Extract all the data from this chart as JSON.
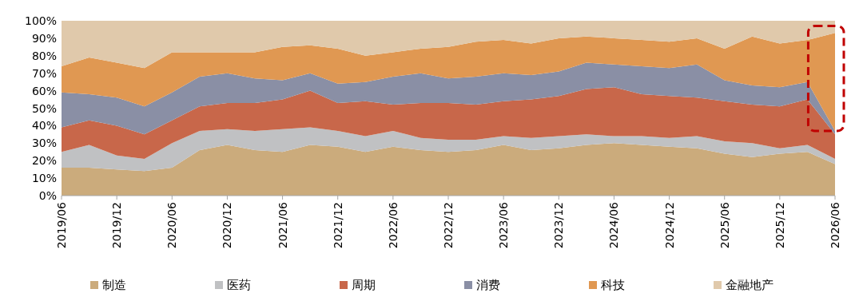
{
  "chart_data": {
    "type": "area",
    "stacked": true,
    "categories": [
      "2019/06",
      null,
      "2019/12",
      null,
      "2020/06",
      null,
      "2020/12",
      null,
      "2021/06",
      null,
      "2021/12",
      null,
      "2022/06",
      null,
      "2022/12",
      null,
      "2023/06",
      null,
      "2023/12",
      null,
      "2024/06",
      null,
      "2024/12",
      null,
      "2025/06",
      null,
      "2025/12",
      null,
      "2026/06"
    ],
    "ylim": [
      0,
      100
    ],
    "yticks": [
      {
        "value": 0,
        "label": "0%"
      },
      {
        "value": 10,
        "label": "10%"
      },
      {
        "value": 20,
        "label": "20%"
      },
      {
        "value": 30,
        "label": "30%"
      },
      {
        "value": 40,
        "label": "40%"
      },
      {
        "value": 50,
        "label": "50%"
      },
      {
        "value": 60,
        "label": "60%"
      },
      {
        "value": 70,
        "label": "70%"
      },
      {
        "value": 80,
        "label": "80%"
      },
      {
        "value": 90,
        "label": "90%"
      },
      {
        "value": 100,
        "label": "100%"
      }
    ],
    "legend": "bottom",
    "grid": false,
    "series": [
      {
        "name": "制造",
        "color": "#cbab7c",
        "values": [
          16,
          16,
          15,
          14,
          16,
          26,
          29,
          26,
          25,
          29,
          28,
          25,
          28,
          26,
          25,
          26,
          29,
          26,
          27,
          29,
          30,
          29,
          28,
          27,
          24,
          22,
          24,
          25,
          18
        ]
      },
      {
        "name": "医药",
        "color": "#c0c1c3",
        "values": [
          9,
          13,
          8,
          7,
          14,
          11,
          9,
          11,
          13,
          10,
          9,
          9,
          9,
          7,
          7,
          6,
          5,
          7,
          7,
          6,
          4,
          5,
          5,
          7,
          7,
          8,
          3,
          4,
          3
        ]
      },
      {
        "name": "周期",
        "color": "#c8674a",
        "values": [
          14,
          14,
          17,
          14,
          13,
          14,
          15,
          16,
          17,
          21,
          16,
          20,
          15,
          20,
          21,
          20,
          20,
          22,
          23,
          26,
          28,
          24,
          24,
          22,
          23,
          22,
          24,
          26,
          14
        ]
      },
      {
        "name": "消费",
        "color": "#8a8fa5",
        "values": [
          20,
          15,
          16,
          16,
          16,
          17,
          17,
          14,
          11,
          10,
          11,
          11,
          16,
          17,
          14,
          16,
          16,
          14,
          14,
          15,
          13,
          16,
          16,
          19,
          12,
          11,
          11,
          10,
          2
        ]
      },
      {
        "name": "科技",
        "color": "#e09852",
        "values": [
          15,
          21,
          20,
          22,
          23,
          14,
          12,
          15,
          19,
          16,
          20,
          15,
          14,
          14,
          18,
          20,
          19,
          18,
          19,
          15,
          15,
          15,
          15,
          15,
          18,
          28,
          25,
          24,
          56
        ]
      },
      {
        "name": "金融地产",
        "color": "#e0c9ab",
        "values": [
          26,
          21,
          24,
          27,
          18,
          18,
          18,
          18,
          15,
          14,
          16,
          20,
          18,
          16,
          15,
          12,
          11,
          13,
          10,
          9,
          10,
          11,
          12,
          10,
          16,
          9,
          13,
          11,
          7
        ]
      }
    ]
  }
}
